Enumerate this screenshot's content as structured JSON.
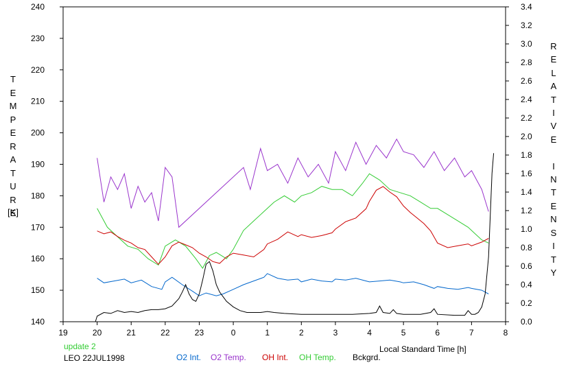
{
  "chart_data": {
    "type": "line",
    "xlabel": "Local Standard Time [h]",
    "ylabel_left": "TEMPERATURE",
    "ylabel_left_unit": "[K]",
    "ylabel_right": "RELATIVE INTENSITY",
    "xlim": [
      19,
      32
    ],
    "x_tick_values": [
      19,
      20,
      21,
      22,
      23,
      24,
      25,
      26,
      27,
      28,
      29,
      30,
      31,
      32
    ],
    "x_tick_labels": [
      "19",
      "20",
      "21",
      "22",
      "23",
      "0",
      "1",
      "2",
      "3",
      "4",
      "5",
      "6",
      "7",
      "8"
    ],
    "ylim_left": [
      140,
      240
    ],
    "y_left_ticks": [
      "140",
      "150",
      "160",
      "170",
      "180",
      "190",
      "200",
      "210",
      "220",
      "230",
      "240"
    ],
    "ylim_right": [
      0.0,
      3.4
    ],
    "y_right_ticks": [
      "0.0",
      "0.2",
      "0.4",
      "0.6",
      "0.8",
      "1.0",
      "1.2",
      "1.4",
      "1.6",
      "1.8",
      "2.0",
      "2.2",
      "2.4",
      "2.6",
      "2.8",
      "3.0",
      "3.2",
      "3.4"
    ],
    "grid": false,
    "legend_position": "bottom",
    "series": [
      {
        "name": "O2 Int.",
        "axis": "right",
        "color": "#0066cc",
        "x": [
          20,
          20.2,
          20.5,
          20.8,
          21,
          21.3,
          21.6,
          21.9,
          22,
          22.2,
          22.5,
          22.8,
          23,
          23.2,
          23.5,
          23.7,
          24,
          24.3,
          24.6,
          24.9,
          25,
          25.3,
          25.6,
          25.9,
          26,
          26.3,
          26.6,
          26.9,
          27,
          27.3,
          27.6,
          27.9,
          28,
          28.3,
          28.6,
          28.9,
          29,
          29.3,
          29.6,
          29.9,
          30,
          30.3,
          30.6,
          30.9,
          31,
          31.3,
          31.5
        ],
        "y": [
          0.47,
          0.42,
          0.44,
          0.46,
          0.42,
          0.45,
          0.38,
          0.35,
          0.43,
          0.48,
          0.4,
          0.33,
          0.28,
          0.31,
          0.28,
          0.3,
          0.35,
          0.4,
          0.44,
          0.48,
          0.52,
          0.47,
          0.45,
          0.46,
          0.43,
          0.46,
          0.44,
          0.43,
          0.46,
          0.45,
          0.47,
          0.44,
          0.43,
          0.44,
          0.45,
          0.43,
          0.42,
          0.43,
          0.4,
          0.36,
          0.38,
          0.36,
          0.35,
          0.37,
          0.36,
          0.34,
          0.3
        ]
      },
      {
        "name": "O2 Temp.",
        "axis": "left",
        "color": "#9933cc",
        "x": [
          20,
          20.2,
          20.4,
          20.6,
          20.8,
          21,
          21.2,
          21.4,
          21.6,
          21.8,
          22,
          22.2,
          22.4,
          24.3,
          24.5,
          24.8,
          25,
          25.3,
          25.6,
          25.9,
          26.2,
          26.5,
          26.8,
          27,
          27.3,
          27.6,
          27.9,
          28.2,
          28.5,
          28.8,
          29,
          29.3,
          29.6,
          29.9,
          30.2,
          30.5,
          30.8,
          31,
          31.3,
          31.5
        ],
        "y": [
          192,
          178,
          186,
          182,
          187,
          176,
          183,
          178,
          181,
          172,
          189,
          186,
          170,
          189,
          182,
          195,
          188,
          190,
          184,
          192,
          186,
          190,
          184,
          194,
          188,
          197,
          190,
          196,
          192,
          198,
          194,
          193,
          189,
          194,
          188,
          192,
          186,
          188,
          182,
          175
        ]
      },
      {
        "name": "OH Int.",
        "axis": "right",
        "color": "#cc0000",
        "x": [
          20,
          20.2,
          20.4,
          20.6,
          20.8,
          21,
          21.2,
          21.4,
          21.6,
          21.8,
          22,
          22.2,
          22.4,
          22.6,
          22.8,
          23,
          23.2,
          23.4,
          23.6,
          23.8,
          24,
          24.3,
          24.6,
          24.9,
          25,
          25.3,
          25.6,
          25.9,
          26,
          26.3,
          26.6,
          26.9,
          27,
          27.3,
          27.6,
          27.9,
          28,
          28.2,
          28.4,
          28.6,
          28.8,
          29,
          29.2,
          29.4,
          29.6,
          29.8,
          30,
          30.3,
          30.6,
          30.9,
          31,
          31.3,
          31.5
        ],
        "y": [
          0.98,
          0.95,
          0.97,
          0.92,
          0.88,
          0.85,
          0.8,
          0.78,
          0.7,
          0.62,
          0.7,
          0.82,
          0.86,
          0.83,
          0.8,
          0.74,
          0.7,
          0.65,
          0.63,
          0.7,
          0.74,
          0.72,
          0.7,
          0.78,
          0.84,
          0.89,
          0.97,
          0.92,
          0.94,
          0.91,
          0.93,
          0.96,
          1.0,
          1.08,
          1.12,
          1.22,
          1.3,
          1.42,
          1.46,
          1.4,
          1.35,
          1.25,
          1.18,
          1.12,
          1.06,
          0.98,
          0.85,
          0.8,
          0.82,
          0.84,
          0.82,
          0.86,
          0.9
        ]
      },
      {
        "name": "OH Temp.",
        "axis": "left",
        "color": "#33cc33",
        "x": [
          20,
          20.3,
          20.6,
          20.9,
          21.2,
          21.5,
          21.8,
          22,
          22.3,
          22.6,
          22.9,
          23.1,
          23.3,
          23.5,
          23.8,
          24,
          24.3,
          24.6,
          24.9,
          25.2,
          25.5,
          25.8,
          26,
          26.3,
          26.6,
          26.9,
          27.2,
          27.5,
          27.8,
          28,
          28.3,
          28.6,
          28.9,
          29.2,
          29.5,
          29.8,
          30,
          30.3,
          30.6,
          30.9,
          31.1,
          31.3,
          31.5
        ],
        "y": [
          176,
          170,
          167,
          164,
          163,
          160,
          158,
          164,
          166,
          164,
          160,
          157,
          161,
          162,
          160,
          163,
          169,
          172,
          175,
          178,
          180,
          178,
          180,
          181,
          183,
          182,
          182,
          180,
          184,
          187,
          185,
          182,
          181,
          180,
          178,
          176,
          176,
          174,
          172,
          170,
          168,
          166,
          165
        ]
      },
      {
        "name": "Bckgrd.",
        "axis": "right",
        "color": "#000000",
        "x": [
          19.95,
          20,
          20.2,
          20.4,
          20.6,
          20.8,
          21,
          21.2,
          21.4,
          21.6,
          21.8,
          22,
          22.2,
          22.4,
          22.5,
          22.6,
          22.7,
          22.8,
          22.9,
          23,
          23.1,
          23.2,
          23.3,
          23.4,
          23.5,
          23.6,
          23.7,
          23.8,
          24,
          24.2,
          24.4,
          24.6,
          24.8,
          25,
          25.2,
          25.5,
          26,
          26.5,
          27,
          27.5,
          28,
          28.2,
          28.3,
          28.4,
          28.6,
          28.7,
          28.8,
          29,
          29.5,
          29.8,
          29.9,
          30,
          30.5,
          30.8,
          30.9,
          31,
          31.1,
          31.2,
          31.3,
          31.4,
          31.5,
          31.6,
          31.65
        ],
        "y": [
          0.0,
          0.06,
          0.1,
          0.09,
          0.12,
          0.1,
          0.11,
          0.1,
          0.12,
          0.13,
          0.13,
          0.14,
          0.17,
          0.25,
          0.32,
          0.4,
          0.3,
          0.24,
          0.22,
          0.3,
          0.45,
          0.62,
          0.65,
          0.55,
          0.4,
          0.32,
          0.27,
          0.22,
          0.16,
          0.12,
          0.1,
          0.1,
          0.1,
          0.11,
          0.1,
          0.09,
          0.08,
          0.08,
          0.08,
          0.08,
          0.09,
          0.1,
          0.17,
          0.1,
          0.09,
          0.13,
          0.09,
          0.08,
          0.08,
          0.1,
          0.14,
          0.08,
          0.07,
          0.07,
          0.12,
          0.08,
          0.08,
          0.1,
          0.16,
          0.3,
          0.7,
          1.6,
          1.82
        ]
      }
    ]
  },
  "footer": {
    "update_text": "update 2",
    "station_text": "LEO 22JUL1998"
  },
  "colors": {
    "axis": "#000000",
    "background": "#ffffff",
    "update_text": "#33cc33"
  }
}
